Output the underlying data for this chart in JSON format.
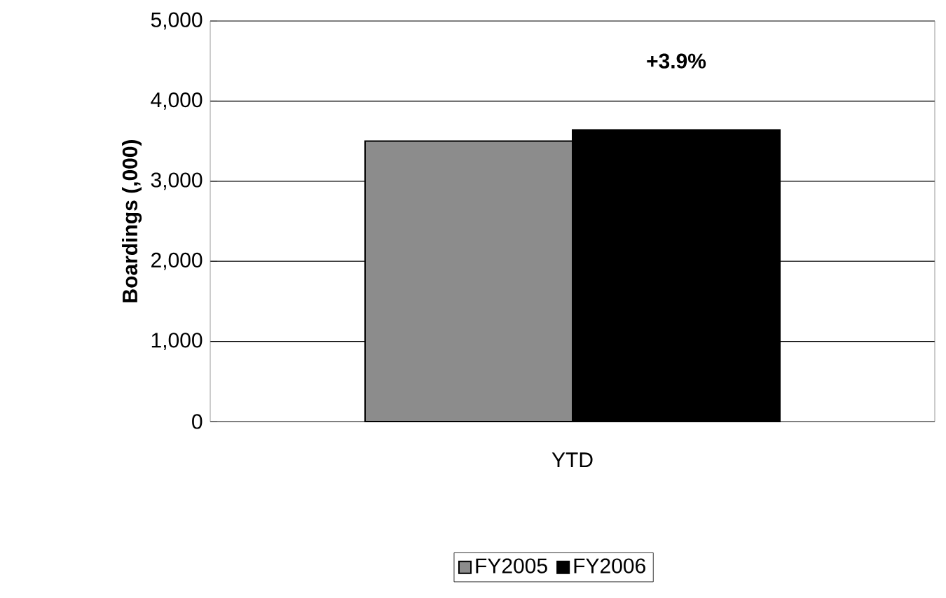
{
  "chart_data": {
    "type": "bar",
    "ylabel": "Boardings (,000)",
    "categories": [
      "YTD"
    ],
    "series": [
      {
        "name": "FY2005",
        "color": "#8c8c8c",
        "values": [
          3500
        ]
      },
      {
        "name": "FY2006",
        "color": "#000000",
        "values": [
          3640
        ]
      }
    ],
    "ylim": [
      0,
      5000
    ],
    "yticks": [
      {
        "value": 0,
        "label": "0"
      },
      {
        "value": 1000,
        "label": "1,000"
      },
      {
        "value": 2000,
        "label": "2,000"
      },
      {
        "value": 3000,
        "label": "3,000"
      },
      {
        "value": 4000,
        "label": "4,000"
      },
      {
        "value": 5000,
        "label": "5,000"
      }
    ],
    "annotations": [
      "+3.9%"
    ],
    "grid": "y",
    "legend": "bottom"
  }
}
